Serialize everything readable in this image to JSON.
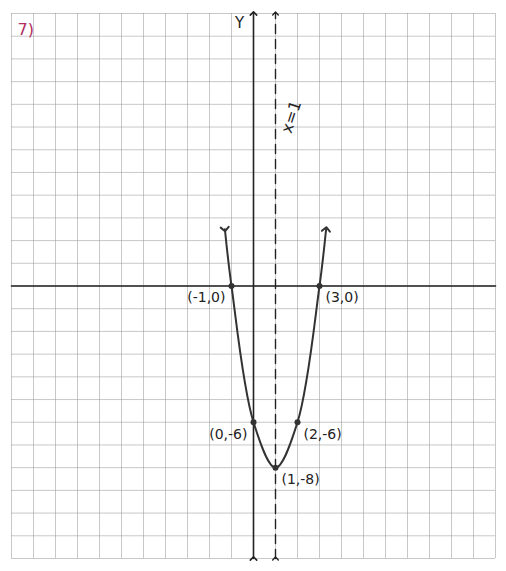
{
  "chart_data": {
    "type": "line",
    "y_label": "Y",
    "annotations": [
      {
        "text": "7)",
        "color": "#b03060"
      }
    ],
    "x": [
      -1.3,
      -1,
      0,
      1,
      2,
      3,
      3.3
    ],
    "values": [
      2.5,
      0,
      -6,
      -8,
      -6,
      0,
      2.5
    ],
    "color": "#333333",
    "marker": "arrow",
    "points": [
      {
        "x": -1,
        "y": 0,
        "label": "(-1,0)"
      },
      {
        "x": 3,
        "y": 0,
        "label": "(3,0)"
      },
      {
        "x": 0,
        "y": -6,
        "label": "(0,-6)"
      },
      {
        "x": 2,
        "y": -6,
        "label": "(2,-6)"
      },
      {
        "x": 1,
        "y": -8,
        "label": "(1,-8)"
      }
    ],
    "axis_of_symmetry": {
      "x": 1,
      "label": "x=1",
      "line_style": "dashed"
    },
    "xlim": [
      -11,
      11
    ],
    "ylim": [
      -12,
      12
    ],
    "xticks": [
      -11,
      -10,
      -9,
      -8,
      -7,
      -6,
      -5,
      -4,
      -3,
      -2,
      -1,
      0,
      1,
      2,
      3,
      4,
      5,
      6,
      7,
      8,
      9,
      10,
      11
    ],
    "yticks": [
      -12,
      -11,
      -10,
      -9,
      -8,
      -7,
      -6,
      -5,
      -4,
      -3,
      -2,
      -1,
      0,
      1,
      2,
      3,
      4,
      5,
      6,
      7,
      8,
      9,
      10,
      11,
      12
    ],
    "grid": true,
    "tick_labels": false
  }
}
